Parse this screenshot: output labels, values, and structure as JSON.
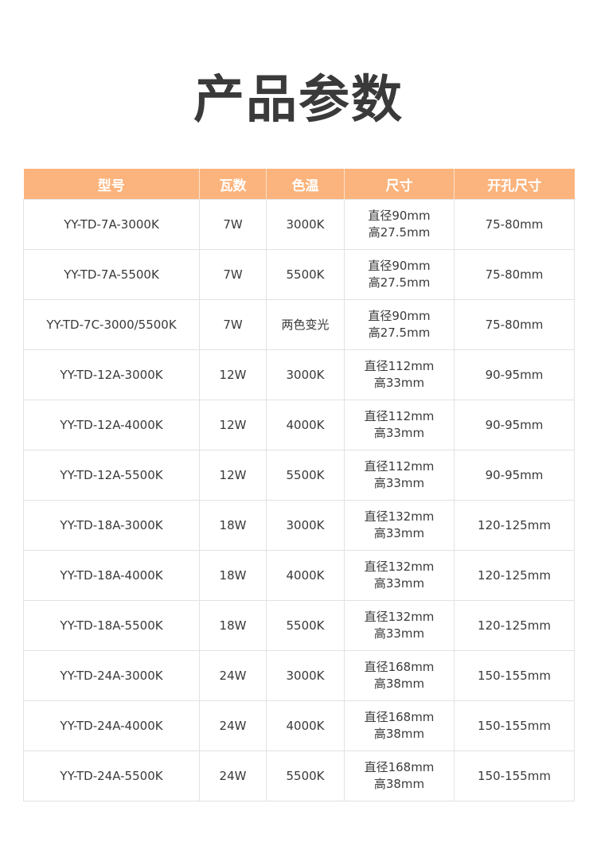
{
  "title": "产品参数",
  "colors": {
    "header_bg": "#fbb47d",
    "header_text": "#ffffff",
    "border": "#e2e2e2"
  },
  "table": {
    "headers": [
      "型号",
      "瓦数",
      "色温",
      "尺寸",
      "开孔尺寸"
    ],
    "rows": [
      {
        "model": "YY-TD-7A-3000K",
        "watt": "7W",
        "cct": "3000K",
        "size1": "直径90mm",
        "size2": "高27.5mm",
        "cutout": "75-80mm"
      },
      {
        "model": "YY-TD-7A-5500K",
        "watt": "7W",
        "cct": "5500K",
        "size1": "直径90mm",
        "size2": "高27.5mm",
        "cutout": "75-80mm"
      },
      {
        "model": "YY-TD-7C-3000/5500K",
        "watt": "7W",
        "cct": "两色变光",
        "size1": "直径90mm",
        "size2": "高27.5mm",
        "cutout": "75-80mm"
      },
      {
        "model": "YY-TD-12A-3000K",
        "watt": "12W",
        "cct": "3000K",
        "size1": "直径112mm",
        "size2": "高33mm",
        "cutout": "90-95mm"
      },
      {
        "model": "YY-TD-12A-4000K",
        "watt": "12W",
        "cct": "4000K",
        "size1": "直径112mm",
        "size2": "高33mm",
        "cutout": "90-95mm"
      },
      {
        "model": "YY-TD-12A-5500K",
        "watt": "12W",
        "cct": "5500K",
        "size1": "直径112mm",
        "size2": "高33mm",
        "cutout": "90-95mm"
      },
      {
        "model": "YY-TD-18A-3000K",
        "watt": "18W",
        "cct": "3000K",
        "size1": "直径132mm",
        "size2": "高33mm",
        "cutout": "120-125mm"
      },
      {
        "model": "YY-TD-18A-4000K",
        "watt": "18W",
        "cct": "4000K",
        "size1": "直径132mm",
        "size2": "高33mm",
        "cutout": "120-125mm"
      },
      {
        "model": "YY-TD-18A-5500K",
        "watt": "18W",
        "cct": "5500K",
        "size1": "直径132mm",
        "size2": "高33mm",
        "cutout": "120-125mm"
      },
      {
        "model": "YY-TD-24A-3000K",
        "watt": "24W",
        "cct": "3000K",
        "size1": "直径168mm",
        "size2": "高38mm",
        "cutout": "150-155mm"
      },
      {
        "model": "YY-TD-24A-4000K",
        "watt": "24W",
        "cct": "4000K",
        "size1": "直径168mm",
        "size2": "高38mm",
        "cutout": "150-155mm"
      },
      {
        "model": "YY-TD-24A-5500K",
        "watt": "24W",
        "cct": "5500K",
        "size1": "直径168mm",
        "size2": "高38mm",
        "cutout": "150-155mm"
      }
    ]
  }
}
